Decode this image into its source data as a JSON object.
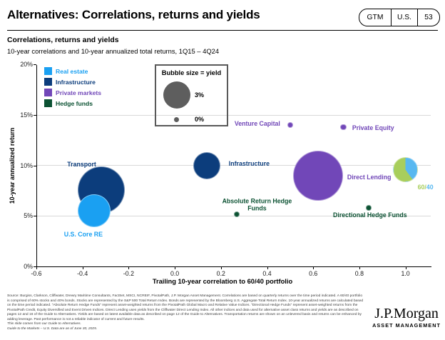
{
  "slide": {
    "title": "Alternatives: Correlations, returns and yields",
    "badge": {
      "items": [
        "GTM",
        "U.S.",
        "53"
      ]
    }
  },
  "chart_header": {
    "title": "Correlations, returns and yields",
    "subtitle": "10-year correlations and 10-year annualized total returns, 1Q15 – 4Q24"
  },
  "legend": {
    "items": [
      {
        "label": "Real estate",
        "color": "#1AA0F2"
      },
      {
        "label": "Infrastructure",
        "color": "#0C3D7C"
      },
      {
        "label": "Private markets",
        "color": "#7147B8"
      },
      {
        "label": "Hedge funds",
        "color": "#0C5233"
      }
    ]
  },
  "size_legend": {
    "title": "Bubble size = yield",
    "big": {
      "label": "3%"
    },
    "small": {
      "label": "0%"
    },
    "bubble_color": "#5E5E5E"
  },
  "chart_data": {
    "type": "bubble",
    "title": "Correlations, returns and yields",
    "xlabel": "Trailing 10-year correlation to 60/40 portfolio",
    "ylabel": "10-year annualized return",
    "xlim": [
      -0.6,
      1.1
    ],
    "ylim": [
      0,
      20
    ],
    "x_ticks": [
      -0.6,
      -0.4,
      -0.2,
      0,
      0.2,
      0.4,
      0.6,
      0.8,
      1
    ],
    "y_ticks": [
      0,
      5,
      10,
      15,
      20
    ],
    "grid_y": [
      5,
      10,
      15
    ],
    "size_note": "Bubble area encodes current yield, scaled per size legend (0% small dot to 3% large bubble)",
    "points": [
      {
        "name": "Transport",
        "x": -0.32,
        "y": 7.6,
        "yield_est_pct": 9.3,
        "radius_px": 33,
        "color": "#0C3D7C",
        "label_offset": [
          -27,
          -36
        ]
      },
      {
        "name": "U.S. Core RE",
        "x": -0.35,
        "y": 5.5,
        "yield_est_pct": 4.4,
        "radius_px": 23,
        "color": "#1AA0F2",
        "label_offset": [
          -15,
          33
        ]
      },
      {
        "name": "Infrastructure",
        "x": 0.14,
        "y": 10.0,
        "yield_est_pct": 3.1,
        "radius_px": 19,
        "color": "#0C3D7C",
        "label_offset": [
          59,
          -3
        ]
      },
      {
        "name": "Direct Lending",
        "x": 0.62,
        "y": 9.0,
        "yield_est_pct": 10.4,
        "radius_px": 35,
        "color": "#7147B8",
        "label_offset": [
          72,
          2
        ]
      },
      {
        "name": "60/40",
        "x": 1.0,
        "y": 9.6,
        "yield_est_pct": 2.5,
        "radius_px": 17.5,
        "pie": {
          "start_deg": 0,
          "segments": [
            {
              "color": "#58B8F0",
              "fraction": 0.4
            },
            {
              "color": "#A8CE5C",
              "fraction": 0.6
            }
          ]
        },
        "label_offset": [
          28,
          25
        ],
        "label_parts": [
          {
            "text": "60/",
            "color": "#A8CE5C"
          },
          {
            "text": "40",
            "color": "#58B8F0"
          }
        ]
      },
      {
        "name": "Venture Capital",
        "x": 0.5,
        "y": 14.0,
        "yield_est_pct": 0,
        "radius_px": 4,
        "color": "#7147B8",
        "label_offset": [
          -46,
          -2
        ]
      },
      {
        "name": "Private Equity",
        "x": 0.73,
        "y": 13.8,
        "yield_est_pct": 0,
        "radius_px": 4.3,
        "color": "#7147B8",
        "label_offset": [
          42,
          1
        ]
      },
      {
        "name": "Absolute Return Hedge Funds",
        "x": 0.27,
        "y": 5.2,
        "yield_est_pct": 0,
        "radius_px": 4,
        "color": "#0C5233",
        "label": "Absolute Return Hedge\nFunds",
        "label_offset": [
          28,
          -13
        ]
      },
      {
        "name": "Directional Hedge Funds",
        "x": 0.84,
        "y": 5.8,
        "yield_est_pct": 0,
        "radius_px": 3.7,
        "color": "#0C5233",
        "label_offset": [
          2,
          10
        ]
      }
    ]
  },
  "footer": {
    "source_text": "Source: Burgiss, Clarkson, Cliffwater, Drewry Maritime Consultants, FactSet, MSCI, NCREIF, PivotalPath, J.P. Morgan Asset Management. Correlations are based on quarterly returns over the time period indicated. A 60/40 portfolio is comprised of 60% stocks and 40% bonds. Stocks are represented by the S&P 500 Total Return Index. Bonds are represented by the Bloomberg U.S. Aggregate Total Return Index. 10-year annualized returns are calculated based on the time period indicated. “Absolute Return Hedge Funds” represent asset-weighted returns from the PivotalPath Global Macro and Relative Value Indices. “Directional Hedge Funds” represent asset-weighted returns from the PivotalPath Credit, Equity Diversified and Event Driven Indices. Direct Lending uses yields from the Cliffwater Direct Lending Index. All other indices and data used for alternative asset class returns and yields are as described on pages 12 and 16 of the Guide to Alternatives. Yields are based on latest available data as described on page 12 of the Guide to Alternatives. Transportation returns are shown on an unlevered basis and returns can be enhanced by adding leverage. Past performance is not a reliable indicator of current and future results.",
    "note1": "This slide comes from our Guide to Alternatives.",
    "note2": "Guide to the Markets – U.S. Data are as of June 30, 2025."
  },
  "logo": {
    "brand": "J.P.Morgan",
    "division": "ASSET MANAGEMENT"
  }
}
